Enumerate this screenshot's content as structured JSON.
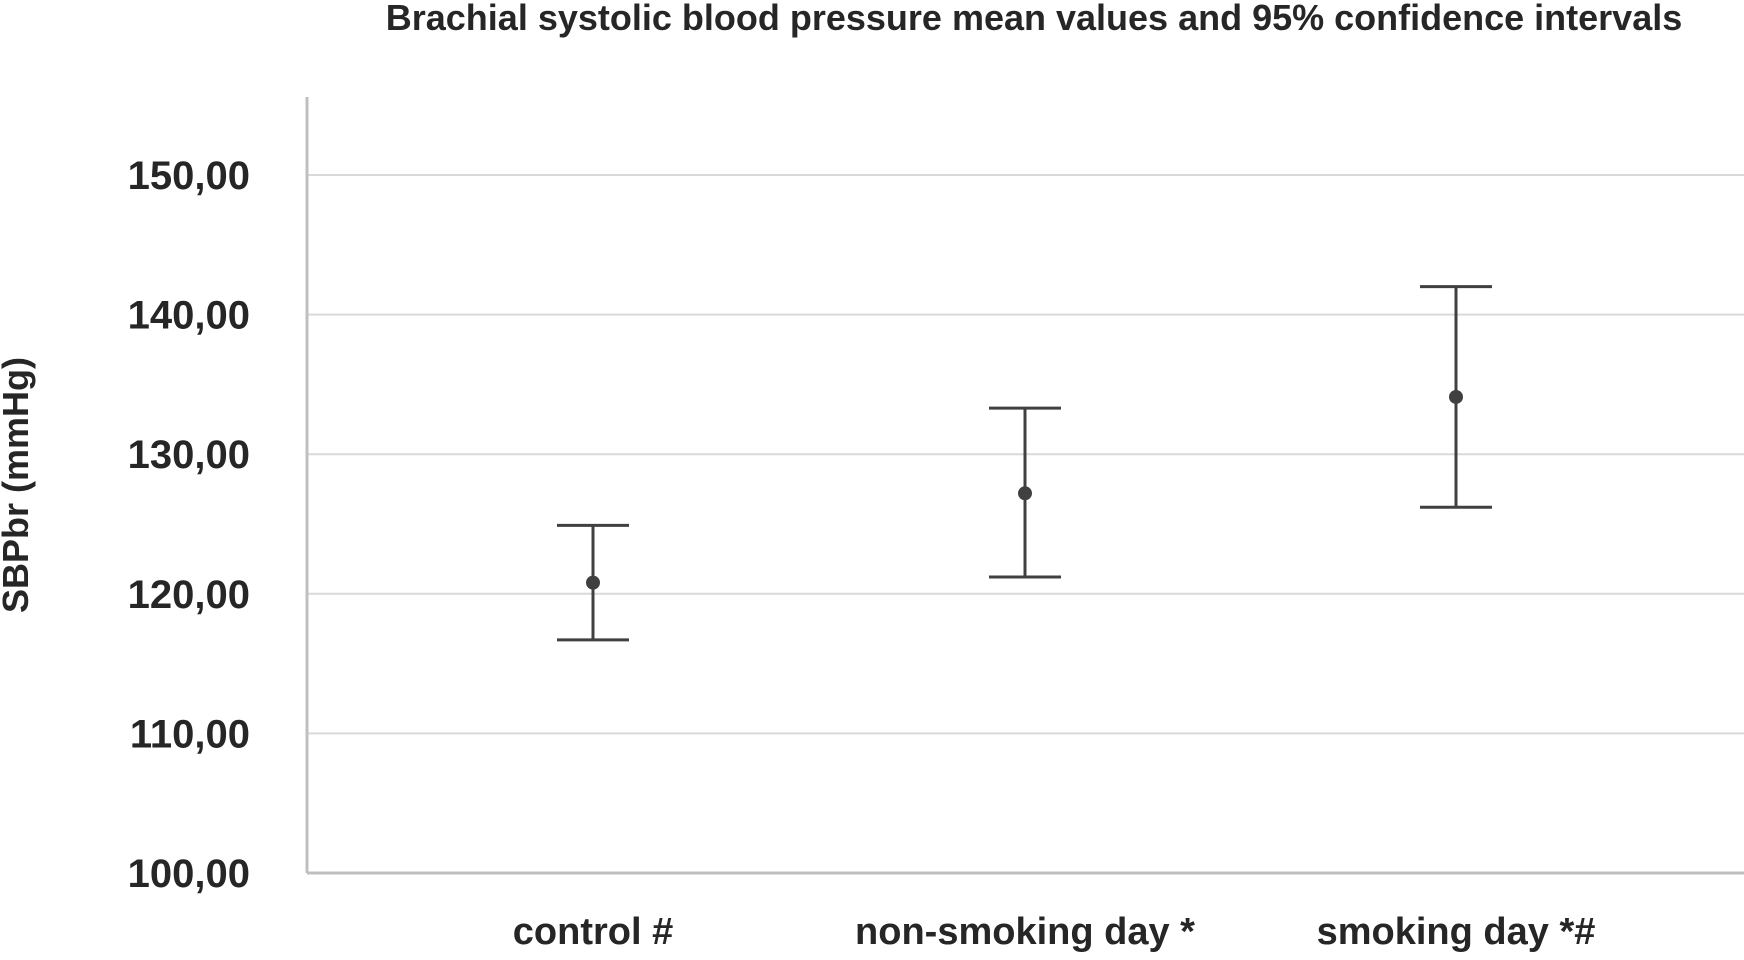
{
  "chart_data": {
    "type": "scatter",
    "title": "Brachial systolic blood pressure mean values and 95% confidence intervals",
    "xlabel": "",
    "ylabel": "SBPbr (mmHg)",
    "ylim": [
      100,
      155
    ],
    "yticks": [
      100,
      110,
      120,
      130,
      140,
      150
    ],
    "ytick_labels": [
      "100,00",
      "110,00",
      "120,00",
      "130,00",
      "140,00",
      "150,00"
    ],
    "grid": true,
    "categories": [
      "control #",
      "non-smoking day *",
      "smoking day *#"
    ],
    "means": [
      120.8,
      127.2,
      134.1
    ],
    "ci_lower": [
      116.7,
      121.2,
      126.2
    ],
    "ci_upper": [
      124.9,
      133.3,
      142.0
    ],
    "colors": {
      "marker": "#404040",
      "grid": "#d9d9d9",
      "axis": "#bfbfbf",
      "text": "#262626"
    }
  }
}
